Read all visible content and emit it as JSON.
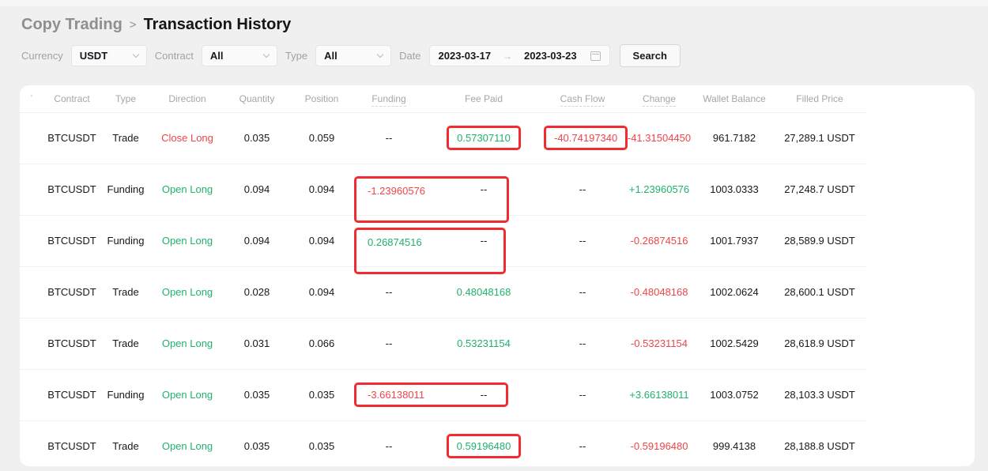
{
  "breadcrumb": {
    "parent": "Copy Trading",
    "separator": ">",
    "current": "Transaction History"
  },
  "filters": {
    "currency": {
      "label": "Currency",
      "value": "USDT"
    },
    "contract": {
      "label": "Contract",
      "value": "All"
    },
    "type": {
      "label": "Type",
      "value": "All"
    },
    "date": {
      "label": "Date",
      "start": "2023-03-17",
      "arrow": "→",
      "end": "2023-03-23"
    },
    "search_label": "Search"
  },
  "icons": {
    "dropdown": "chevron-down",
    "date_picker": "calendar",
    "range_separator": "arrow-right"
  },
  "colors": {
    "green": "#20b26c",
    "red": "#ef454a",
    "default": "#17181c",
    "annotation_box": "#f12b2f",
    "muted": "#a6a6aa"
  },
  "table": {
    "corner_mark": "'",
    "columns": [
      {
        "key": "contract",
        "label": "Contract",
        "underlined": false
      },
      {
        "key": "type",
        "label": "Type",
        "underlined": false
      },
      {
        "key": "direction",
        "label": "Direction",
        "underlined": false
      },
      {
        "key": "quantity",
        "label": "Quantity",
        "underlined": false
      },
      {
        "key": "position",
        "label": "Position",
        "underlined": false
      },
      {
        "key": "funding",
        "label": "Funding",
        "underlined": true
      },
      {
        "key": "fee_paid",
        "label": "Fee Paid",
        "underlined": false
      },
      {
        "key": "cash_flow",
        "label": "Cash Flow",
        "underlined": true
      },
      {
        "key": "change",
        "label": "Change",
        "underlined": true
      },
      {
        "key": "wallet_balance",
        "label": "Wallet Balance",
        "underlined": false
      },
      {
        "key": "filled_price",
        "label": "Filled Price",
        "underlined": false
      }
    ],
    "rows": [
      {
        "contract": "BTCUSDT",
        "type": "Trade",
        "direction": {
          "text": "Close Long",
          "color": "red"
        },
        "quantity": "0.035",
        "position": "0.059",
        "funding": {
          "text": "--"
        },
        "fee_paid": {
          "text": "0.57307110",
          "color": "green",
          "box": "normal"
        },
        "cash_flow": {
          "text": "-40.74197340",
          "color": "red",
          "box": "normal"
        },
        "change": {
          "text": "-41.31504450",
          "color": "red"
        },
        "wallet_balance": "961.7182",
        "filled_price": "27,289.1 USDT"
      },
      {
        "contract": "BTCUSDT",
        "type": "Funding",
        "direction": {
          "text": "Open Long",
          "color": "green"
        },
        "quantity": "0.094",
        "position": "0.094",
        "funding": {
          "text": "-1.23960576",
          "color": "red",
          "box": "wide-tall"
        },
        "fee_paid": {
          "text": "--"
        },
        "cash_flow": {
          "text": "--"
        },
        "change": {
          "text": "+1.23960576",
          "color": "green"
        },
        "wallet_balance": "1003.0333",
        "filled_price": "27,248.7 USDT"
      },
      {
        "contract": "BTCUSDT",
        "type": "Funding",
        "direction": {
          "text": "Open Long",
          "color": "green"
        },
        "quantity": "0.094",
        "position": "0.094",
        "funding": {
          "text": "0.26874516",
          "color": "green",
          "box": "wide-tall"
        },
        "fee_paid": {
          "text": "--"
        },
        "cash_flow": {
          "text": "--"
        },
        "change": {
          "text": "-0.26874516",
          "color": "red"
        },
        "wallet_balance": "1001.7937",
        "filled_price": "28,589.9 USDT"
      },
      {
        "contract": "BTCUSDT",
        "type": "Trade",
        "direction": {
          "text": "Open Long",
          "color": "green"
        },
        "quantity": "0.028",
        "position": "0.094",
        "funding": {
          "text": "--"
        },
        "fee_paid": {
          "text": "0.48048168",
          "color": "green"
        },
        "cash_flow": {
          "text": "--"
        },
        "change": {
          "text": "-0.48048168",
          "color": "red"
        },
        "wallet_balance": "1002.0624",
        "filled_price": "28,600.1 USDT"
      },
      {
        "contract": "BTCUSDT",
        "type": "Trade",
        "direction": {
          "text": "Open Long",
          "color": "green"
        },
        "quantity": "0.031",
        "position": "0.066",
        "funding": {
          "text": "--"
        },
        "fee_paid": {
          "text": "0.53231154",
          "color": "green"
        },
        "cash_flow": {
          "text": "--"
        },
        "change": {
          "text": "-0.53231154",
          "color": "red"
        },
        "wallet_balance": "1002.5429",
        "filled_price": "28,618.9 USDT"
      },
      {
        "contract": "BTCUSDT",
        "type": "Funding",
        "direction": {
          "text": "Open Long",
          "color": "green"
        },
        "quantity": "0.035",
        "position": "0.035",
        "funding": {
          "text": "-3.66138011",
          "color": "red",
          "box": "wide"
        },
        "fee_paid": {
          "text": "--"
        },
        "cash_flow": {
          "text": "--"
        },
        "change": {
          "text": "+3.66138011",
          "color": "green"
        },
        "wallet_balance": "1003.0752",
        "filled_price": "28,103.3 USDT"
      },
      {
        "contract": "BTCUSDT",
        "type": "Trade",
        "direction": {
          "text": "Open Long",
          "color": "green"
        },
        "quantity": "0.035",
        "position": "0.035",
        "funding": {
          "text": "--"
        },
        "fee_paid": {
          "text": "0.59196480",
          "color": "green",
          "box": "normal"
        },
        "cash_flow": {
          "text": "--"
        },
        "change": {
          "text": "-0.59196480",
          "color": "red"
        },
        "wallet_balance": "999.4138",
        "filled_price": "28,188.8 USDT"
      }
    ]
  }
}
